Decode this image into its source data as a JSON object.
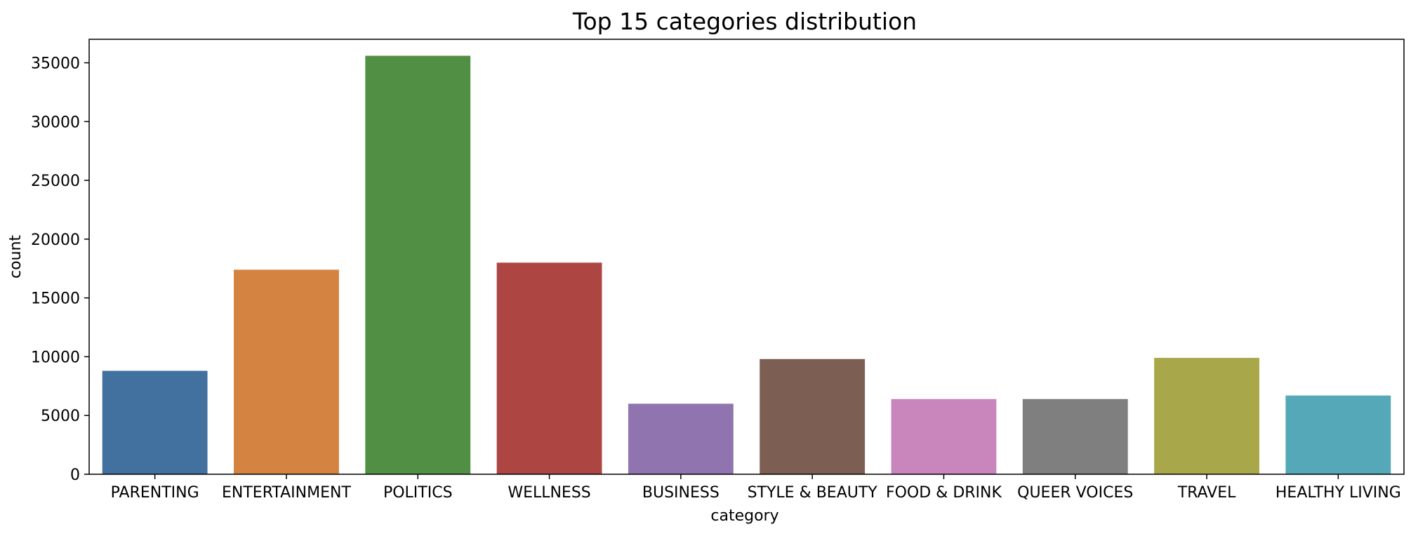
{
  "chart_data": {
    "type": "bar",
    "title": "Top 15 categories distribution",
    "xlabel": "category",
    "ylabel": "count",
    "categories": [
      "PARENTING",
      "ENTERTAINMENT",
      "POLITICS",
      "WELLNESS",
      "BUSINESS",
      "STYLE & BEAUTY",
      "FOOD & DRINK",
      "QUEER VOICES",
      "TRAVEL",
      "HEALTHY LIVING"
    ],
    "values": [
      8800,
      17400,
      35600,
      18000,
      6000,
      9800,
      6400,
      6400,
      9900,
      6700
    ],
    "colors": [
      "#4271a0",
      "#d48440",
      "#519044",
      "#ad4643",
      "#8f74b0",
      "#7d5e53",
      "#c986bd",
      "#7f7f7f",
      "#a8a84a",
      "#55a8b7"
    ],
    "ylim": [
      0,
      37000
    ],
    "yticks": [
      0,
      5000,
      10000,
      15000,
      20000,
      25000,
      30000,
      35000
    ],
    "grid": false,
    "legend": "none"
  }
}
